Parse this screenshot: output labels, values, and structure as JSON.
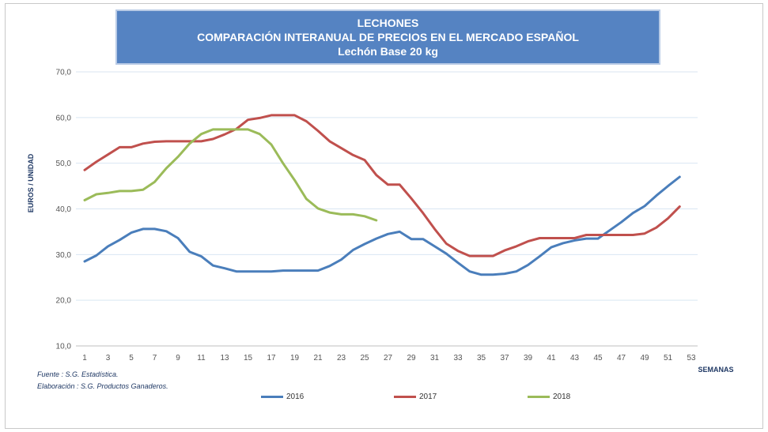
{
  "title": {
    "line1": "LECHONES",
    "line2": "COMPARACIÓN INTERANUAL DE PRECIOS EN EL MERCADO ESPAÑOL",
    "line3": "Lechón Base 20 kg"
  },
  "source": {
    "fuente": "Fuente :  S.G. Estadística.",
    "elaboracion": "Elaboración : S.G. Productos Ganaderos."
  },
  "chart_data": {
    "type": "line",
    "ylabel": "EUROS / UNIDAD",
    "xlabel": "SEMANAS",
    "ylim": [
      10,
      70
    ],
    "yticks": [
      "10,0",
      "20,0",
      "30,0",
      "40,0",
      "50,0",
      "60,0",
      "70,0"
    ],
    "xlim": [
      1,
      53
    ],
    "xticks": [
      1,
      3,
      5,
      7,
      9,
      11,
      13,
      15,
      17,
      19,
      21,
      23,
      25,
      27,
      29,
      31,
      33,
      35,
      37,
      39,
      41,
      43,
      45,
      47,
      49,
      51,
      53
    ],
    "grid": true,
    "legend_position": "bottom",
    "series": [
      {
        "name": "2016",
        "color": "#4a7ebb",
        "x": [
          1,
          2,
          3,
          4,
          5,
          6,
          7,
          8,
          9,
          10,
          11,
          12,
          13,
          14,
          15,
          16,
          17,
          18,
          19,
          20,
          21,
          22,
          23,
          24,
          25,
          26,
          27,
          28,
          29,
          30,
          31,
          32,
          33,
          34,
          35,
          36,
          37,
          38,
          39,
          40,
          41,
          42,
          43,
          44,
          45,
          46,
          47,
          48,
          49,
          50,
          51,
          52
        ],
        "values": [
          28.5,
          29.8,
          31.8,
          33.2,
          34.8,
          35.6,
          35.6,
          35.1,
          33.6,
          30.6,
          29.6,
          27.6,
          27.0,
          26.3,
          26.3,
          26.3,
          26.3,
          26.5,
          26.5,
          26.5,
          26.5,
          27.5,
          28.9,
          31.0,
          32.3,
          33.5,
          34.5,
          35.0,
          33.4,
          33.4,
          31.8,
          30.2,
          28.2,
          26.3,
          25.6,
          25.6,
          25.8,
          26.3,
          27.7,
          29.6,
          31.6,
          32.5,
          33.1,
          33.5,
          33.5,
          35.3,
          37.1,
          39.1,
          40.6,
          42.9,
          45.0,
          47.0
        ]
      },
      {
        "name": "2017",
        "color": "#c0504d",
        "x": [
          1,
          2,
          3,
          4,
          5,
          6,
          7,
          8,
          9,
          10,
          11,
          12,
          13,
          14,
          15,
          16,
          17,
          18,
          19,
          20,
          21,
          22,
          23,
          24,
          25,
          26,
          27,
          28,
          29,
          30,
          31,
          32,
          33,
          34,
          35,
          36,
          37,
          38,
          39,
          40,
          41,
          42,
          43,
          44,
          45,
          46,
          47,
          48,
          49,
          50,
          51,
          52
        ],
        "values": [
          48.5,
          50.3,
          51.9,
          53.5,
          53.5,
          54.3,
          54.7,
          54.8,
          54.8,
          54.8,
          54.8,
          55.3,
          56.3,
          57.5,
          59.5,
          59.9,
          60.5,
          60.5,
          60.5,
          59.2,
          57.1,
          54.8,
          53.3,
          51.8,
          50.7,
          47.4,
          45.3,
          45.3,
          42.3,
          39.1,
          35.6,
          32.4,
          30.8,
          29.7,
          29.7,
          29.7,
          30.9,
          31.8,
          32.9,
          33.6,
          33.6,
          33.6,
          33.6,
          34.3,
          34.3,
          34.3,
          34.3,
          34.3,
          34.6,
          35.9,
          37.9,
          40.5
        ]
      },
      {
        "name": "2018",
        "color": "#9bbb59",
        "x": [
          1,
          2,
          3,
          4,
          5,
          6,
          7,
          8,
          9,
          10,
          11,
          12,
          13,
          14,
          15,
          16,
          17,
          18,
          19,
          20,
          21,
          22,
          23,
          24,
          25,
          26
        ],
        "values": [
          41.9,
          43.2,
          43.5,
          43.9,
          43.9,
          44.2,
          45.9,
          48.9,
          51.4,
          54.3,
          56.4,
          57.4,
          57.4,
          57.4,
          57.4,
          56.4,
          54.1,
          50.0,
          46.3,
          42.2,
          40.1,
          39.2,
          38.8,
          38.8,
          38.4,
          37.5
        ]
      }
    ]
  }
}
